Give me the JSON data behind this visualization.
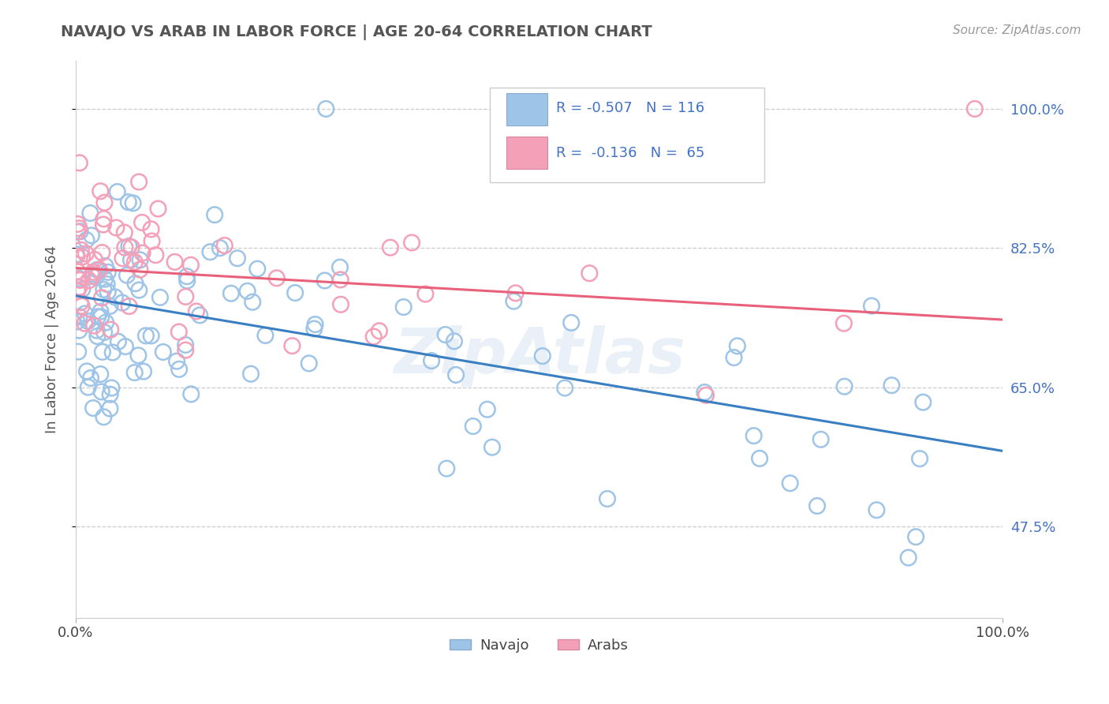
{
  "title": "NAVAJO VS ARAB IN LABOR FORCE | AGE 20-64 CORRELATION CHART",
  "source": "Source: ZipAtlas.com",
  "ylabel": "In Labor Force | Age 20-64",
  "xlim": [
    0.0,
    1.0
  ],
  "ylim": [
    0.36,
    1.06
  ],
  "yticks": [
    0.475,
    0.65,
    0.825,
    1.0
  ],
  "ytick_labels": [
    "47.5%",
    "65.0%",
    "82.5%",
    "100.0%"
  ],
  "xticks": [
    0.0,
    1.0
  ],
  "xtick_labels": [
    "0.0%",
    "100.0%"
  ],
  "navajo_color": "#9ec4e8",
  "arab_color": "#f4a0b8",
  "navajo_line_color": "#3a7fc1",
  "arab_line_color": "#e8607a",
  "navajo_R": -0.507,
  "navajo_N": 116,
  "arab_R": -0.136,
  "arab_N": 65,
  "text_color": "#4472c4",
  "watermark": "ZipAtlas",
  "background_color": "#ffffff",
  "grid_color": "#cccccc",
  "title_color": "#555555",
  "label_color": "#666666",
  "source_color": "#999999"
}
